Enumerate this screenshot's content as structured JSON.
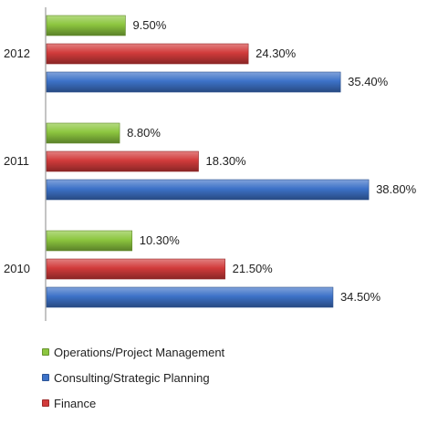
{
  "chart_data": {
    "type": "bar",
    "orientation": "horizontal",
    "categories": [
      "2012",
      "2011",
      "2010"
    ],
    "series": [
      {
        "name": "Operations/Project Management",
        "color": "#8cc63f",
        "values": [
          9.5,
          8.8,
          10.3
        ],
        "labels": [
          "9.50%",
          "8.80%",
          "10.30%"
        ]
      },
      {
        "name": "Finance",
        "color": "#d23b3b",
        "values": [
          24.3,
          18.3,
          21.5
        ],
        "labels": [
          "24.30%",
          "18.30%",
          "21.50%"
        ]
      },
      {
        "name": "Consulting/Strategic Planning",
        "color": "#3d72c8",
        "values": [
          35.4,
          38.8,
          34.5
        ],
        "labels": [
          "35.40%",
          "38.80%",
          "34.50%"
        ]
      }
    ],
    "legend": {
      "position": "bottom-left",
      "order": [
        "Operations/Project Management",
        "Consulting/Strategic Planning",
        "Finance"
      ]
    },
    "grid": false,
    "xlim": [
      0,
      45
    ]
  }
}
